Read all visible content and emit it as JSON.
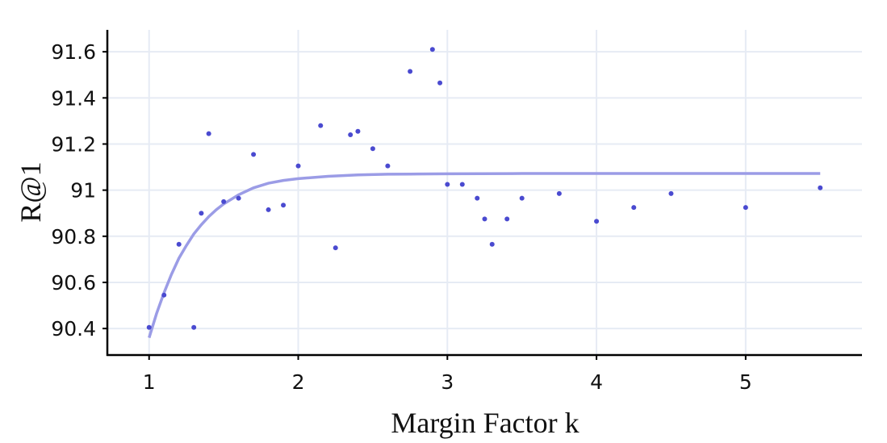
{
  "colors": {
    "points": "#4a4ad0",
    "fit_line": "#9b9ce6",
    "grid": "#e6ebf4",
    "axis": "#000000"
  },
  "chart_data": {
    "type": "scatter",
    "xlabel": "Margin Factor k",
    "ylabel": "R@1",
    "xlim": [
      0.72,
      5.78
    ],
    "ylim": [
      90.285,
      91.695
    ],
    "xticks": [
      1,
      2,
      3,
      4,
      5
    ],
    "yticks": [
      90.4,
      90.6,
      90.8,
      91.0,
      91.2,
      91.4,
      91.6
    ],
    "xtick_labels": [
      "1",
      "2",
      "3",
      "4",
      "5"
    ],
    "ytick_labels": [
      "90.4",
      "90.6",
      "90.8",
      "91",
      "91.2",
      "91.4",
      "91.6"
    ],
    "grid": true,
    "legend": "none",
    "series": [
      {
        "type": "scatter",
        "x": [
          1.0,
          1.1,
          1.2,
          1.3,
          1.35,
          1.4,
          1.5,
          1.6,
          1.7,
          1.8,
          1.9,
          2.0,
          2.15,
          2.25,
          2.35,
          2.4,
          2.5,
          2.6,
          2.75,
          2.9,
          2.95,
          3.0,
          3.1,
          3.2,
          3.25,
          3.3,
          3.4,
          3.5,
          3.75,
          4.0,
          4.25,
          4.5,
          5.0,
          5.5
        ],
        "y": [
          90.405,
          90.545,
          90.765,
          90.405,
          90.9,
          91.245,
          90.95,
          90.965,
          91.155,
          90.915,
          90.935,
          91.105,
          91.28,
          90.75,
          91.24,
          91.255,
          91.18,
          91.105,
          91.515,
          91.61,
          91.465,
          91.025,
          91.025,
          90.965,
          90.875,
          90.765,
          90.875,
          90.965,
          90.985,
          90.865,
          90.925,
          90.985,
          90.925,
          91.01
        ]
      },
      {
        "type": "line",
        "x": [
          1.0,
          1.05,
          1.1,
          1.15,
          1.2,
          1.25,
          1.3,
          1.35,
          1.4,
          1.45,
          1.5,
          1.6,
          1.7,
          1.8,
          1.9,
          2.0,
          2.2,
          2.4,
          2.6,
          2.8,
          3.0,
          3.5,
          4.0,
          4.5,
          5.0,
          5.5
        ],
        "y": [
          90.36,
          90.465,
          90.555,
          90.635,
          90.705,
          90.76,
          90.81,
          90.85,
          90.885,
          90.915,
          90.94,
          90.98,
          91.01,
          91.03,
          91.042,
          91.05,
          91.06,
          91.066,
          91.069,
          91.07,
          91.071,
          91.072,
          91.072,
          91.072,
          91.072,
          91.072
        ]
      }
    ]
  }
}
